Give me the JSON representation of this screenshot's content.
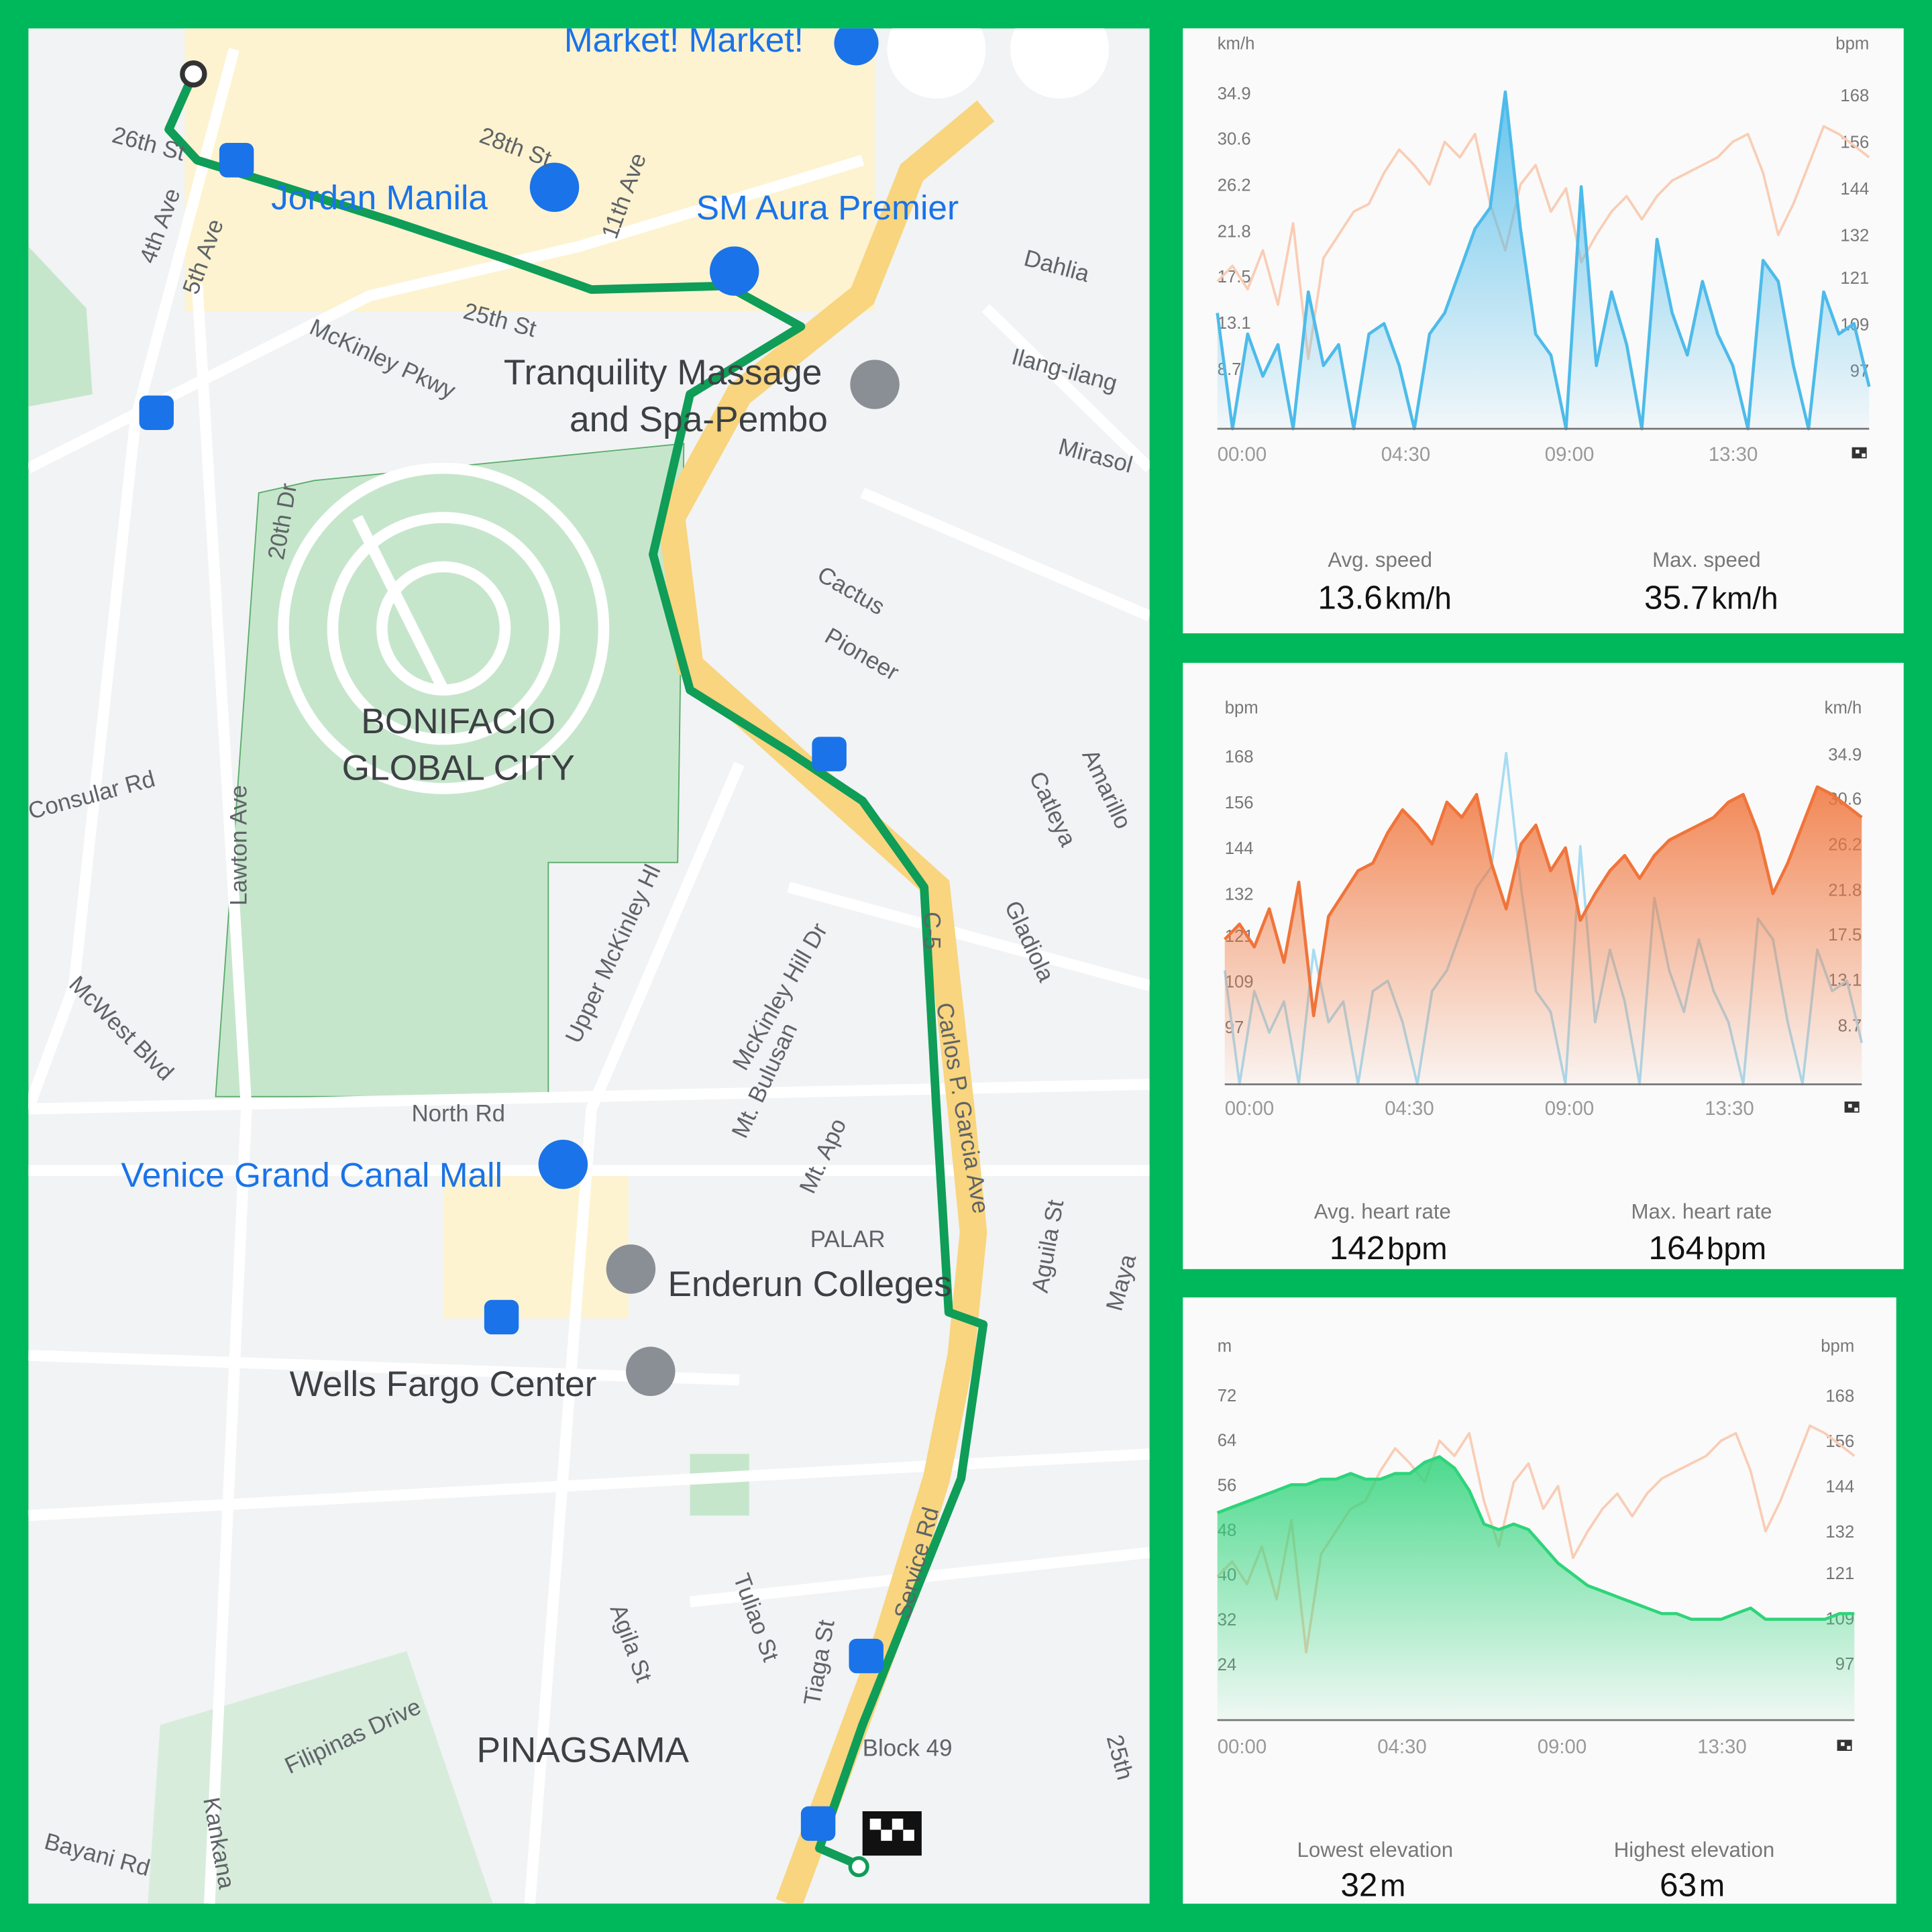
{
  "map": {
    "labels": [
      "Market! Market!",
      "26th St",
      "28th St",
      "11th Ave",
      "Jordan Manila",
      "SM Aura Premier",
      "4th Ave",
      "5th Ave",
      "Dahlia",
      "25th St",
      "McKinley Pkwy",
      "Tranquility Massage",
      "and Spa-Pembo",
      "Ilang-ilang",
      "Mirasol",
      "20th Dr",
      "Cactus",
      "Pioneer",
      "BONIFACIO",
      "GLOBAL CITY",
      "Consular Rd",
      "Lawton Ave",
      "Amarillo",
      "Catleya",
      "Upper McKinley Hl",
      "McKinley Hill Dr",
      "Gladiola",
      "C-5",
      "McWest Blvd",
      "Mt. Bulusan",
      "Carlos P. Garcia Ave",
      "North Rd",
      "Mt. Apo",
      "Venice Grand Canal Mall",
      "PALAR",
      "Aguila St",
      "Enderun Colleges",
      "Maya",
      "Wells Fargo Center",
      "Service Rd",
      "Tuliao St",
      "Agila St",
      "Tiaga St",
      "Filipinas Drive",
      "PINAGSAMA",
      "Block 49",
      "25th",
      "Kankana",
      "Bayani Rd"
    ]
  },
  "chart_data": [
    {
      "type": "line",
      "y_label": "km/h",
      "y2_label": "bpm",
      "grid": false,
      "x": [
        0,
        25,
        50,
        75,
        100,
        125,
        150,
        175,
        200,
        225,
        250,
        275,
        300,
        325,
        350,
        375,
        400,
        425,
        450,
        475,
        500,
        525,
        550,
        575,
        600,
        625,
        650,
        675,
        700,
        725,
        750,
        775,
        800,
        825,
        850,
        875,
        900,
        925,
        950,
        975,
        1000,
        1025,
        1050,
        1075
      ],
      "xlim": [
        0,
        1075
      ],
      "xticks": [
        {
          "value": 0,
          "label": "00:00"
        },
        {
          "value": 270,
          "label": "04:30"
        },
        {
          "value": 540,
          "label": "09:00"
        },
        {
          "value": 810,
          "label": "13:30"
        }
      ],
      "ylim": [
        3,
        38
      ],
      "yticks": [
        8.7,
        13.1,
        17.5,
        21.8,
        26.2,
        30.6,
        34.9
      ],
      "y2lim": [
        82,
        177
      ],
      "y2ticks": [
        97,
        109,
        121,
        132,
        144,
        156,
        168
      ],
      "series": [
        {
          "name": "Speed",
          "color": "#4dbbea",
          "area": true,
          "values": [
            14,
            3,
            12,
            8,
            11,
            3,
            16,
            9,
            11,
            3,
            12,
            13,
            9,
            3,
            12,
            14,
            18,
            22,
            24,
            35,
            22,
            12,
            10,
            3,
            26,
            9,
            16,
            11,
            3,
            21,
            14,
            10,
            17,
            12,
            9,
            3,
            19,
            17,
            9,
            3,
            16,
            12,
            13,
            7
          ]
        },
        {
          "name": "Heart rate",
          "color": "#f9cdb5",
          "axis": "y2",
          "area": false,
          "values": [
            120,
            124,
            118,
            128,
            114,
            135,
            100,
            126,
            132,
            138,
            140,
            148,
            154,
            150,
            145,
            156,
            152,
            158,
            140,
            128,
            145,
            150,
            138,
            144,
            125,
            132,
            138,
            142,
            136,
            142,
            146,
            148,
            150,
            152,
            156,
            158,
            148,
            132,
            140,
            150,
            160,
            158,
            155,
            152
          ]
        }
      ],
      "stats": [
        {
          "label": "Avg. speed",
          "value": 13.6,
          "unit": "km/h"
        },
        {
          "label": "Max. speed",
          "value": 35.7,
          "unit": "km/h"
        }
      ]
    },
    {
      "type": "line",
      "y_label": "bpm",
      "y2_label": "km/h",
      "grid": false,
      "x": [
        0,
        25,
        50,
        75,
        100,
        125,
        150,
        175,
        200,
        225,
        250,
        275,
        300,
        325,
        350,
        375,
        400,
        425,
        450,
        475,
        500,
        525,
        550,
        575,
        600,
        625,
        650,
        675,
        700,
        725,
        750,
        775,
        800,
        825,
        850,
        875,
        900,
        925,
        950,
        975,
        1000,
        1025,
        1050,
        1075
      ],
      "xlim": [
        0,
        1075
      ],
      "xticks": [
        {
          "value": 0,
          "label": "00:00"
        },
        {
          "value": 270,
          "label": "04:30"
        },
        {
          "value": 540,
          "label": "09:00"
        },
        {
          "value": 810,
          "label": "13:30"
        }
      ],
      "ylim": [
        82,
        177
      ],
      "yticks": [
        97,
        109,
        121,
        132,
        144,
        156,
        168
      ],
      "y2lim": [
        3,
        38
      ],
      "y2ticks": [
        8.7,
        13.1,
        17.5,
        21.8,
        26.2,
        30.6,
        34.9
      ],
      "series": [
        {
          "name": "Heart rate",
          "color": "#f0743a",
          "area": true,
          "values": [
            120,
            124,
            118,
            128,
            114,
            135,
            100,
            126,
            132,
            138,
            140,
            148,
            154,
            150,
            145,
            156,
            152,
            158,
            140,
            128,
            145,
            150,
            138,
            144,
            125,
            132,
            138,
            142,
            136,
            142,
            146,
            148,
            150,
            152,
            156,
            158,
            148,
            132,
            140,
            150,
            160,
            158,
            155,
            152
          ]
        },
        {
          "name": "Speed",
          "color": "#a8dcf2",
          "axis": "y2",
          "area": false,
          "values": [
            14,
            3,
            12,
            8,
            11,
            3,
            16,
            9,
            11,
            3,
            12,
            13,
            9,
            3,
            12,
            14,
            18,
            22,
            24,
            35,
            22,
            12,
            10,
            3,
            26,
            9,
            16,
            11,
            3,
            21,
            14,
            10,
            17,
            12,
            9,
            3,
            19,
            17,
            9,
            3,
            16,
            12,
            13,
            7
          ]
        }
      ],
      "stats": [
        {
          "label": "Avg. heart rate",
          "value": 142,
          "unit": "bpm"
        },
        {
          "label": "Max. heart rate",
          "value": 164,
          "unit": "bpm"
        }
      ]
    },
    {
      "type": "line",
      "y_label": "m",
      "y2_label": "bpm",
      "grid": false,
      "x": [
        0,
        25,
        50,
        75,
        100,
        125,
        150,
        175,
        200,
        225,
        250,
        275,
        300,
        325,
        350,
        375,
        400,
        425,
        450,
        475,
        500,
        525,
        550,
        575,
        600,
        625,
        650,
        675,
        700,
        725,
        750,
        775,
        800,
        825,
        850,
        875,
        900,
        925,
        950,
        975,
        1000,
        1025,
        1050,
        1075
      ],
      "xlim": [
        0,
        1075
      ],
      "xticks": [
        {
          "value": 0,
          "label": "00:00"
        },
        {
          "value": 270,
          "label": "04:30"
        },
        {
          "value": 540,
          "label": "09:00"
        },
        {
          "value": 810,
          "label": "13:30"
        }
      ],
      "ylim": [
        14,
        78
      ],
      "yticks": [
        24,
        32,
        40,
        48,
        56,
        64,
        72
      ],
      "y2lim": [
        82,
        177
      ],
      "y2ticks": [
        97,
        109,
        121,
        132,
        144,
        156,
        168
      ],
      "series": [
        {
          "name": "Elevation",
          "color": "#2ed47a",
          "area": true,
          "values": [
            51,
            52,
            53,
            54,
            55,
            56,
            56,
            57,
            57,
            58,
            57,
            57,
            58,
            58,
            60,
            61,
            59,
            55,
            49,
            48,
            49,
            48,
            45,
            42,
            40,
            38,
            37,
            36,
            35,
            34,
            33,
            33,
            32,
            32,
            32,
            33,
            34,
            32,
            32,
            32,
            32,
            32,
            33,
            33
          ]
        },
        {
          "name": "Heart rate",
          "color": "#f9cdb5",
          "axis": "y2",
          "area": false,
          "values": [
            120,
            124,
            118,
            128,
            114,
            135,
            100,
            126,
            132,
            138,
            140,
            148,
            154,
            150,
            145,
            156,
            152,
            158,
            140,
            128,
            145,
            150,
            138,
            144,
            125,
            132,
            138,
            142,
            136,
            142,
            146,
            148,
            150,
            152,
            156,
            158,
            148,
            132,
            140,
            150,
            160,
            158,
            155,
            152
          ]
        }
      ],
      "stats": [
        {
          "label": "Lowest elevation",
          "value": 32,
          "unit": "m"
        },
        {
          "label": "Highest elevation",
          "value": 63,
          "unit": "m"
        }
      ]
    }
  ]
}
